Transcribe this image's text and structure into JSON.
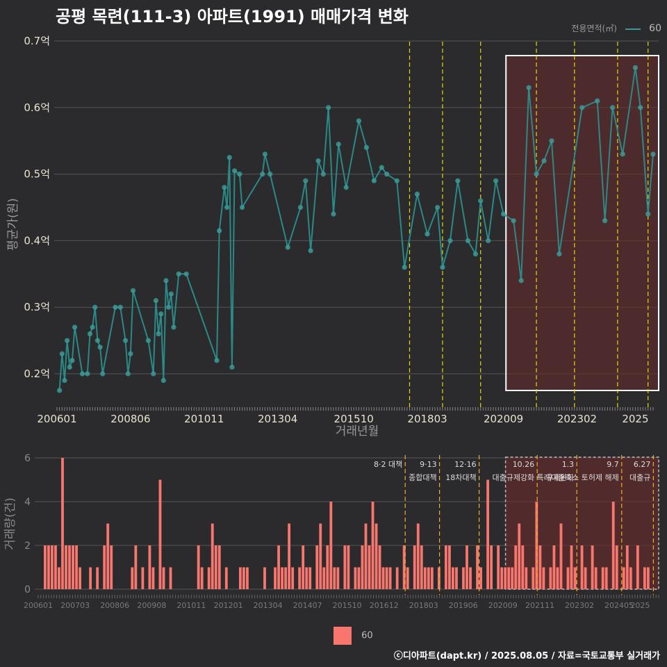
{
  "title": "공평 목련(111-3) 아파트(1991) 매매가격 변화",
  "legend": {
    "title": "전용면적(㎡)",
    "series_label": "60",
    "bar_label": "60"
  },
  "footer": "ⓒ디아파트(dapt.kr) / 2025.08.05 / 자료=국토교통부 실거래가",
  "colors": {
    "line": "#2a8a88",
    "point": "#3a9a98",
    "bar": "#f8766d",
    "background": "#2b2b2d",
    "highlight": "#6a2a2a",
    "policy_line": "#e8d800"
  },
  "chart_data": [
    {
      "type": "line",
      "title": "공평 목련(111-3) 아파트(1991) 매매가격 변화",
      "xlabel": "거래년월",
      "ylabel": "평균가(원)",
      "ylim": [
        0.15,
        0.72
      ],
      "x_ticks": [
        "200601",
        "200806",
        "201011",
        "201304",
        "201510",
        "201803",
        "202009",
        "202302",
        "2025"
      ],
      "y_ticks": [
        0.2,
        0.3,
        0.4,
        0.5,
        0.6,
        0.7
      ],
      "y_tick_labels": [
        "0.2억",
        "0.3억",
        "0.4억",
        "0.5억",
        "0.6억",
        "0.7억"
      ],
      "grid": true,
      "legend_position": "top-right",
      "highlight_range": [
        "2020-10",
        "2025-08"
      ],
      "policy_lines": [
        "2017-08",
        "2018-09",
        "2019-12",
        "2021-10",
        "2023-01",
        "2024-06",
        "2025-06"
      ],
      "series": [
        {
          "name": "60",
          "points": [
            [
              "2006-02",
              0.175
            ],
            [
              "2006-03",
              0.23
            ],
            [
              "2006-04",
              0.19
            ],
            [
              "2006-05",
              0.25
            ],
            [
              "2006-06",
              0.21
            ],
            [
              "2006-07",
              0.22
            ],
            [
              "2006-08",
              0.27
            ],
            [
              "2006-11",
              0.2
            ],
            [
              "2007-01",
              0.2
            ],
            [
              "2007-02",
              0.26
            ],
            [
              "2007-03",
              0.27
            ],
            [
              "2007-04",
              0.3
            ],
            [
              "2007-05",
              0.25
            ],
            [
              "2007-06",
              0.24
            ],
            [
              "2007-07",
              0.2
            ],
            [
              "2007-12",
              0.3
            ],
            [
              "2008-02",
              0.3
            ],
            [
              "2008-04",
              0.25
            ],
            [
              "2008-05",
              0.2
            ],
            [
              "2008-06",
              0.23
            ],
            [
              "2008-07",
              0.325
            ],
            [
              "2009-01",
              0.25
            ],
            [
              "2009-03",
              0.2
            ],
            [
              "2009-04",
              0.31
            ],
            [
              "2009-05",
              0.26
            ],
            [
              "2009-06",
              0.29
            ],
            [
              "2009-07",
              0.19
            ],
            [
              "2009-08",
              0.34
            ],
            [
              "2009-09",
              0.3
            ],
            [
              "2009-10",
              0.32
            ],
            [
              "2009-11",
              0.27
            ],
            [
              "2010-01",
              0.35
            ],
            [
              "2010-04",
              0.35
            ],
            [
              "2011-04",
              0.22
            ],
            [
              "2011-05",
              0.415
            ],
            [
              "2011-07",
              0.48
            ],
            [
              "2011-08",
              0.45
            ],
            [
              "2011-09",
              0.525
            ],
            [
              "2011-10",
              0.21
            ],
            [
              "2011-11",
              0.505
            ],
            [
              "2012-01",
              0.5
            ],
            [
              "2012-02",
              0.45
            ],
            [
              "2012-10",
              0.5
            ],
            [
              "2012-11",
              0.53
            ],
            [
              "2013-01",
              0.5
            ],
            [
              "2013-08",
              0.39
            ],
            [
              "2014-01",
              0.45
            ],
            [
              "2014-03",
              0.49
            ],
            [
              "2014-05",
              0.385
            ],
            [
              "2014-08",
              0.52
            ],
            [
              "2014-10",
              0.5
            ],
            [
              "2014-12",
              0.6
            ],
            [
              "2015-02",
              0.44
            ],
            [
              "2015-04",
              0.545
            ],
            [
              "2015-07",
              0.48
            ],
            [
              "2015-12",
              0.58
            ],
            [
              "2016-03",
              0.54
            ],
            [
              "2016-06",
              0.49
            ],
            [
              "2016-09",
              0.51
            ],
            [
              "2016-11",
              0.5
            ],
            [
              "2017-03",
              0.49
            ],
            [
              "2017-06",
              0.36
            ],
            [
              "2017-11",
              0.47
            ],
            [
              "2018-03",
              0.41
            ],
            [
              "2018-07",
              0.45
            ],
            [
              "2018-09",
              0.36
            ],
            [
              "2018-12",
              0.4
            ],
            [
              "2019-03",
              0.49
            ],
            [
              "2019-07",
              0.4
            ],
            [
              "2019-10",
              0.38
            ],
            [
              "2019-12",
              0.46
            ],
            [
              "2020-03",
              0.4
            ],
            [
              "2020-06",
              0.49
            ],
            [
              "2020-09",
              0.44
            ],
            [
              "2021-01",
              0.43
            ],
            [
              "2021-04",
              0.34
            ],
            [
              "2021-07",
              0.63
            ],
            [
              "2021-10",
              0.5
            ],
            [
              "2022-01",
              0.52
            ],
            [
              "2022-04",
              0.55
            ],
            [
              "2022-07",
              0.38
            ],
            [
              "2023-04",
              0.6
            ],
            [
              "2023-10",
              0.61
            ],
            [
              "2024-01",
              0.43
            ],
            [
              "2024-04",
              0.6
            ],
            [
              "2024-08",
              0.53
            ],
            [
              "2025-01",
              0.66
            ],
            [
              "2025-03",
              0.6
            ],
            [
              "2025-06",
              0.44
            ],
            [
              "2025-08",
              0.53
            ]
          ]
        }
      ]
    },
    {
      "type": "bar",
      "ylabel": "거래량(건)",
      "ylim": [
        0,
        6
      ],
      "y_ticks": [
        0,
        2,
        4,
        6
      ],
      "x_ticks": [
        "200601",
        "200703",
        "200806",
        "200908",
        "201011",
        "201201",
        "201304",
        "201407",
        "201510",
        "201612",
        "201803",
        "201906",
        "202009",
        "202111",
        "202302",
        "202405",
        "2025"
      ],
      "annotations": [
        {
          "date": "2017-08",
          "label": "8·2 대책"
        },
        {
          "date": "2018-09",
          "label": "9·13",
          "label2": "종합대책"
        },
        {
          "date": "2019-12",
          "label": "12·16",
          "label2": "18차대책"
        },
        {
          "date": "2021-10",
          "label": "10.26",
          "label2": "대출규제강화"
        },
        {
          "date": "2023-01",
          "label": "1.3",
          "label2": "규제완화"
        },
        {
          "date": "2024-06",
          "label": "9.7",
          "label2": "특례대출축소 토허제 해제"
        },
        {
          "date": "2025-06",
          "label": "6.27",
          "label2": "대출규"
        }
      ],
      "series": [
        {
          "name": "60",
          "values": [
            2,
            2,
            2,
            2,
            1,
            6,
            2,
            2,
            2,
            2,
            1,
            0,
            0,
            1,
            0,
            1,
            0,
            2,
            3,
            2,
            0,
            0,
            0,
            0,
            0,
            1,
            2,
            0,
            1,
            0,
            2,
            1,
            0,
            5,
            1,
            0,
            1,
            0,
            0,
            0,
            0,
            0,
            0,
            0,
            2,
            1,
            0,
            1,
            3,
            2,
            2,
            0,
            1,
            0,
            0,
            0,
            1,
            1,
            1,
            0,
            0,
            0,
            0,
            1,
            0,
            0,
            1,
            2,
            1,
            1,
            3,
            1,
            0,
            1,
            2,
            1,
            1,
            0,
            2,
            3,
            1,
            2,
            4,
            1,
            1,
            0,
            2,
            2,
            0,
            1,
            1,
            2,
            3,
            2,
            4,
            3,
            2,
            1,
            1,
            1,
            0,
            1,
            0,
            2,
            1,
            0,
            2,
            3,
            2,
            1,
            1,
            1,
            0,
            1,
            0,
            2,
            2,
            1,
            1,
            0,
            1,
            2,
            1,
            0,
            2,
            1,
            0,
            5,
            2,
            0,
            2,
            1,
            1,
            1,
            1,
            2,
            3,
            2,
            1,
            0,
            1,
            4,
            2,
            1,
            0,
            1,
            2,
            1,
            3,
            0,
            1,
            2,
            1,
            0,
            2,
            1,
            0,
            2,
            1,
            0,
            1,
            1,
            0,
            4,
            2,
            0,
            1,
            2,
            1,
            0,
            2,
            0,
            1,
            1
          ]
        }
      ]
    }
  ]
}
